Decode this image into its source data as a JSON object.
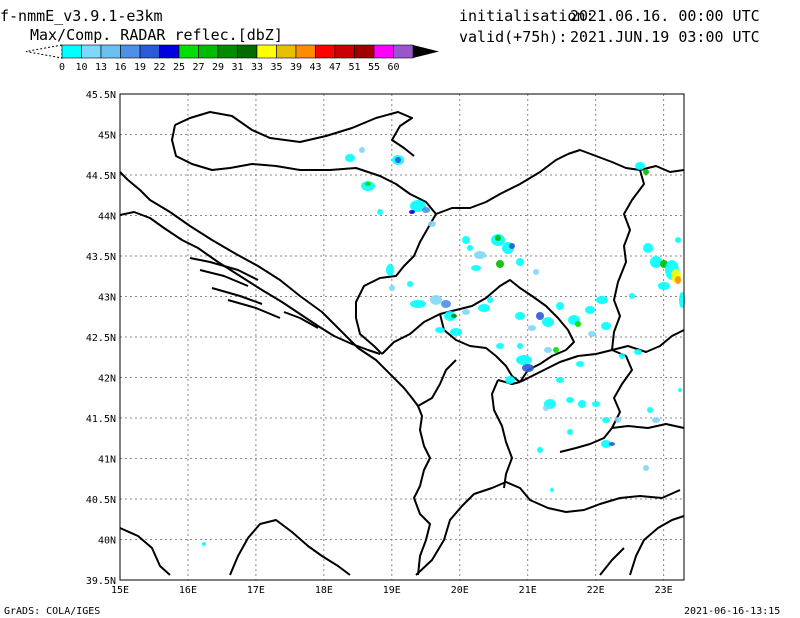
{
  "header": {
    "model": "f-nmmE_v3.9.1-e3km",
    "field": "Max/Comp. RADAR reflec.[dbZ]",
    "init_label": "initialisation:",
    "init_value": "2021.06.16. 00:00 UTC",
    "valid_label": "valid(+75h):",
    "valid_value": "2021.JUN.19 03:00 UTC"
  },
  "colorbar": {
    "ticks": [
      "0",
      "10",
      "13",
      "16",
      "19",
      "22",
      "25",
      "27",
      "29",
      "31",
      "33",
      "35",
      "39",
      "43",
      "47",
      "51",
      "55",
      "60"
    ],
    "colors": [
      "#00ffff",
      "#7fd8f8",
      "#6cc0f0",
      "#4d90e6",
      "#2a5ad8",
      "#0000dc",
      "#00e000",
      "#00bc00",
      "#008c00",
      "#006c00",
      "#ffff00",
      "#e6c000",
      "#ff8c00",
      "#ff0000",
      "#cc0000",
      "#a00000",
      "#ff00ff",
      "#9955cc"
    ]
  },
  "map": {
    "lat_labels": [
      "45.5N",
      "45N",
      "44.5N",
      "44N",
      "43.5N",
      "43N",
      "42.5N",
      "42N",
      "41.5N",
      "41N",
      "40.5N",
      "40N",
      "39.5N"
    ],
    "lon_labels": [
      "15E",
      "16E",
      "17E",
      "18E",
      "19E",
      "20E",
      "21E",
      "22E",
      "23E"
    ],
    "extent": {
      "lon_min": 15,
      "lon_max": 23.3,
      "lat_min": 39.5,
      "lat_max": 45.5
    }
  },
  "footer": {
    "left": "GrADS: COLA/IGES",
    "right": "2021-06-16-13:15"
  }
}
